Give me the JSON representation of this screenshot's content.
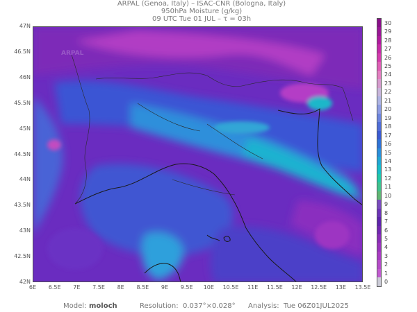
{
  "header": {
    "line1": "ARPAL (Genoa, Italy)  –  ISAC-CNR (Bologna, Italy)",
    "line2": "950hPa Moisture (g/kg)",
    "line3": "09 UTC Tue 01 JUL   –   τ = 03h"
  },
  "axes": {
    "y_ticks": [
      "47N",
      "46.5N",
      "46N",
      "45.5N",
      "45N",
      "44.5N",
      "44N",
      "43.5N",
      "43N",
      "42.5N",
      "42N"
    ],
    "x_ticks": [
      "6E",
      "6.5E",
      "7E",
      "7.5E",
      "8E",
      "8.5E",
      "9E",
      "9.5E",
      "10E",
      "10.5E",
      "11E",
      "11.5E",
      "12E",
      "12.5E",
      "13E",
      "13.5E"
    ]
  },
  "colorbar": {
    "labels": [
      "30",
      "29",
      "28",
      "27",
      "26",
      "25",
      "24",
      "23",
      "22",
      "21",
      "20",
      "19",
      "18",
      "17",
      "16",
      "15",
      "14",
      "13",
      "12",
      "11",
      "10",
      "9",
      "8",
      "7",
      "6",
      "5",
      "4",
      "3",
      "2",
      "1",
      "0"
    ],
    "colors": [
      "#8a0f8a",
      "#9a1696",
      "#b0199f",
      "#c62aa8",
      "#d53cae",
      "#e05fb6",
      "#e57fc2",
      "#d79ccf",
      "#c9b6dc",
      "#aeb4e4",
      "#8e9de4",
      "#6c85e0",
      "#4f6dd9",
      "#3a5bd4",
      "#2f73d8",
      "#2a8fdc",
      "#1fa8d6",
      "#17bdc8",
      "#22c8a8",
      "#3fc38e",
      "#60b774",
      "#7a4bbf",
      "#6c33b8",
      "#5e24ad",
      "#7227b2",
      "#8a2db8",
      "#9b34be",
      "#aa3cc4",
      "#b64bca",
      "#c25bd1",
      "#ccccd8"
    ],
    "watermark": "ARPAL"
  },
  "footer": {
    "model_label": "Model:",
    "model_value": "moloch",
    "resolution_label": "Resolution:",
    "resolution_value": "0.037°×0.028°",
    "analysis_label": "Analysis:",
    "analysis_value": "Tue 06Z01JUL2025"
  }
}
